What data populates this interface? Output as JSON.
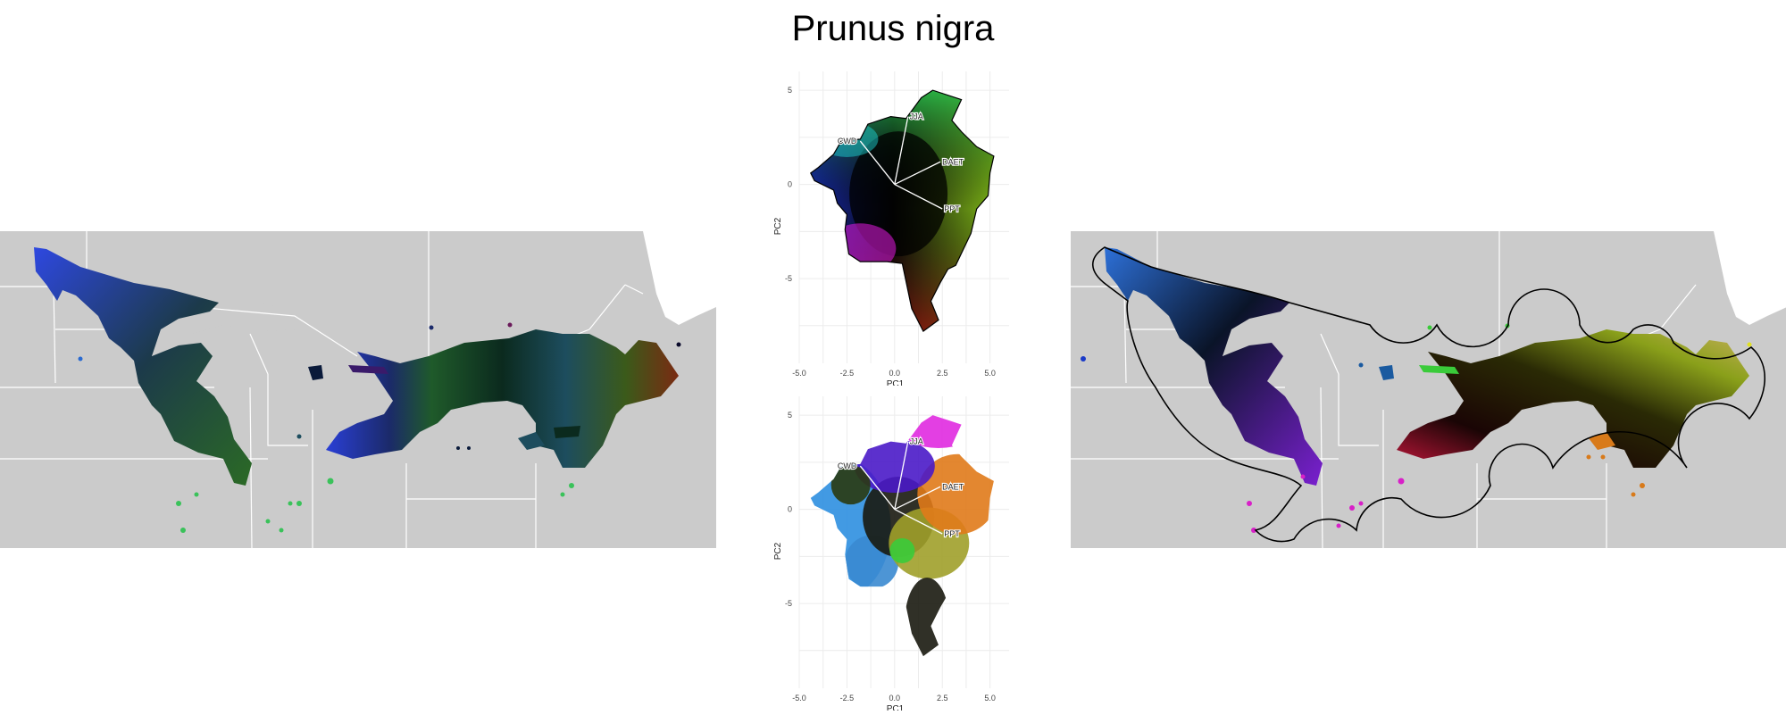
{
  "title": "Prunus nigra",
  "colors": {
    "land": "#cbcbcb",
    "border": "#ffffff",
    "water": "#ffffff",
    "hull": "#000000"
  },
  "chart_data": [
    {
      "type": "map",
      "panel": "left",
      "description_source": "per-pixel PCA color map of species range"
    },
    {
      "type": "scatter",
      "panel": "pca-top",
      "xlabel": "PC1",
      "ylabel": "PC2",
      "xlim": [
        -5.0,
        6.0
      ],
      "ylim": [
        -9.5,
        6.0
      ],
      "xticks": [
        "-5.0",
        "-2.5",
        "0.0",
        "2.5",
        "5.0"
      ],
      "xtick_values": [
        -5.0,
        -2.5,
        0.0,
        2.5,
        5.0
      ],
      "yticks": [
        "5",
        "0",
        "-5"
      ],
      "ytick_values": [
        5,
        0,
        -5
      ],
      "grid": true,
      "loadings": [
        {
          "label": "JJA",
          "x": 0.7,
          "y": 3.6
        },
        {
          "label": "CWD",
          "x": -1.8,
          "y": 2.3
        },
        {
          "label": "DAET",
          "x": 2.4,
          "y": 1.2
        },
        {
          "label": "PPT",
          "x": 2.5,
          "y": -1.3
        }
      ]
    },
    {
      "type": "scatter",
      "panel": "pca-bottom",
      "xlabel": "PC1",
      "ylabel": "PC2",
      "xlim": [
        -5.0,
        6.0
      ],
      "ylim": [
        -9.5,
        6.0
      ],
      "xticks": [
        "-5.0",
        "-2.5",
        "0.0",
        "2.5",
        "5.0"
      ],
      "xtick_values": [
        -5.0,
        -2.5,
        0.0,
        2.5,
        5.0
      ],
      "yticks": [
        "5",
        "0",
        "-5"
      ],
      "ytick_values": [
        5,
        0,
        -5
      ],
      "grid": true,
      "loadings": [
        {
          "label": "JJA",
          "x": 0.7,
          "y": 3.6
        },
        {
          "label": "CWD",
          "x": -1.8,
          "y": 2.3
        },
        {
          "label": "DAET",
          "x": 2.4,
          "y": 1.2
        },
        {
          "label": "PPT",
          "x": 2.5,
          "y": -1.3
        }
      ]
    },
    {
      "type": "map",
      "panel": "right",
      "description_source": "clustered color map with convex hull outline"
    }
  ]
}
